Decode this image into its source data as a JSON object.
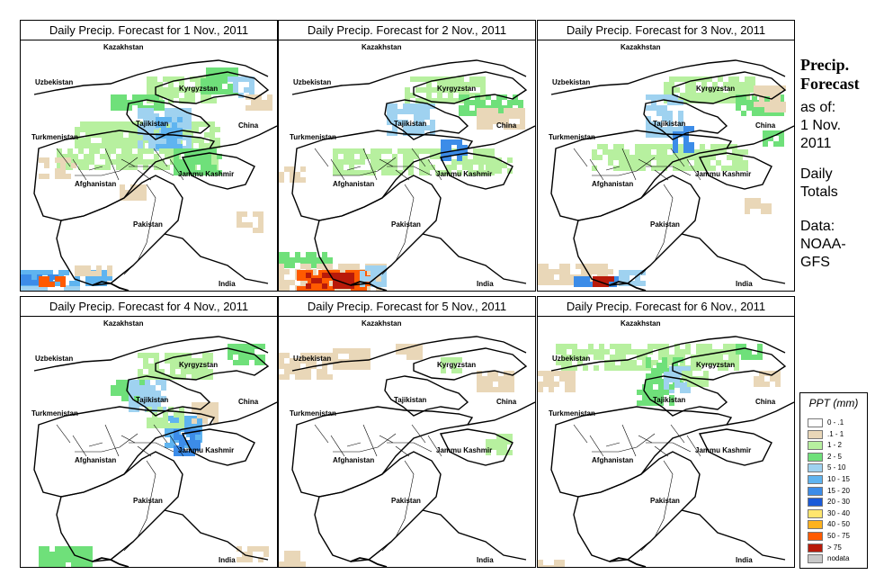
{
  "title_prefix": "Daily Precip. Forecast for ",
  "panels": [
    {
      "title": "Daily Precip. Forecast for  1 Nov., 2011"
    },
    {
      "title": "Daily Precip. Forecast for  2 Nov., 2011"
    },
    {
      "title": "Daily Precip. Forecast for  3 Nov., 2011"
    },
    {
      "title": "Daily Precip. Forecast for  4 Nov., 2011"
    },
    {
      "title": "Daily Precip. Forecast for  5 Nov., 2011"
    },
    {
      "title": "Daily Precip. Forecast for  6 Nov., 2011"
    }
  ],
  "map_labels": {
    "kazakhstan": "Kazakhstan",
    "uzbekistan": "Uzbekistan",
    "kyrgyzstan": "Kyrgyzstan",
    "tajikistan": "Tajikistan",
    "china": "China",
    "turkmenistan": "Turkmenistan",
    "afghanistan": "Afghanistan",
    "jammu_kashmir": "Jammu Kashmir",
    "pakistan": "Pakistan",
    "india": "India"
  },
  "sidebar": {
    "title_line1": "Precip.",
    "title_line2": "Forecast",
    "asof_line1": "as of:",
    "asof_line2": "1 Nov.",
    "asof_line3": "2011",
    "daily_line1": "Daily",
    "daily_line2": "Totals",
    "data_line1": "Data:",
    "data_line2": "NOAA-",
    "data_line3": "GFS"
  },
  "legend": {
    "title": "PPT (mm)",
    "items": [
      {
        "label": "0 - .1",
        "color": "#ffffff"
      },
      {
        "label": ".1 - 1",
        "color": "#e9d7b8"
      },
      {
        "label": "1 - 2",
        "color": "#b7f09f"
      },
      {
        "label": "2 - 5",
        "color": "#6fe07a"
      },
      {
        "label": "5 - 10",
        "color": "#9fd2f0"
      },
      {
        "label": "10 - 15",
        "color": "#5fb4f0"
      },
      {
        "label": "15 - 20",
        "color": "#3c8ce8"
      },
      {
        "label": "20 - 30",
        "color": "#1a5ad8"
      },
      {
        "label": "30 - 40",
        "color": "#ffe66e"
      },
      {
        "label": "40 - 50",
        "color": "#ffb21e"
      },
      {
        "label": "50 - 75",
        "color": "#ff5a00"
      },
      {
        "label": "> 75",
        "color": "#b81a0a"
      },
      {
        "label": "nodata",
        "color": "#c8c8c8"
      }
    ]
  }
}
